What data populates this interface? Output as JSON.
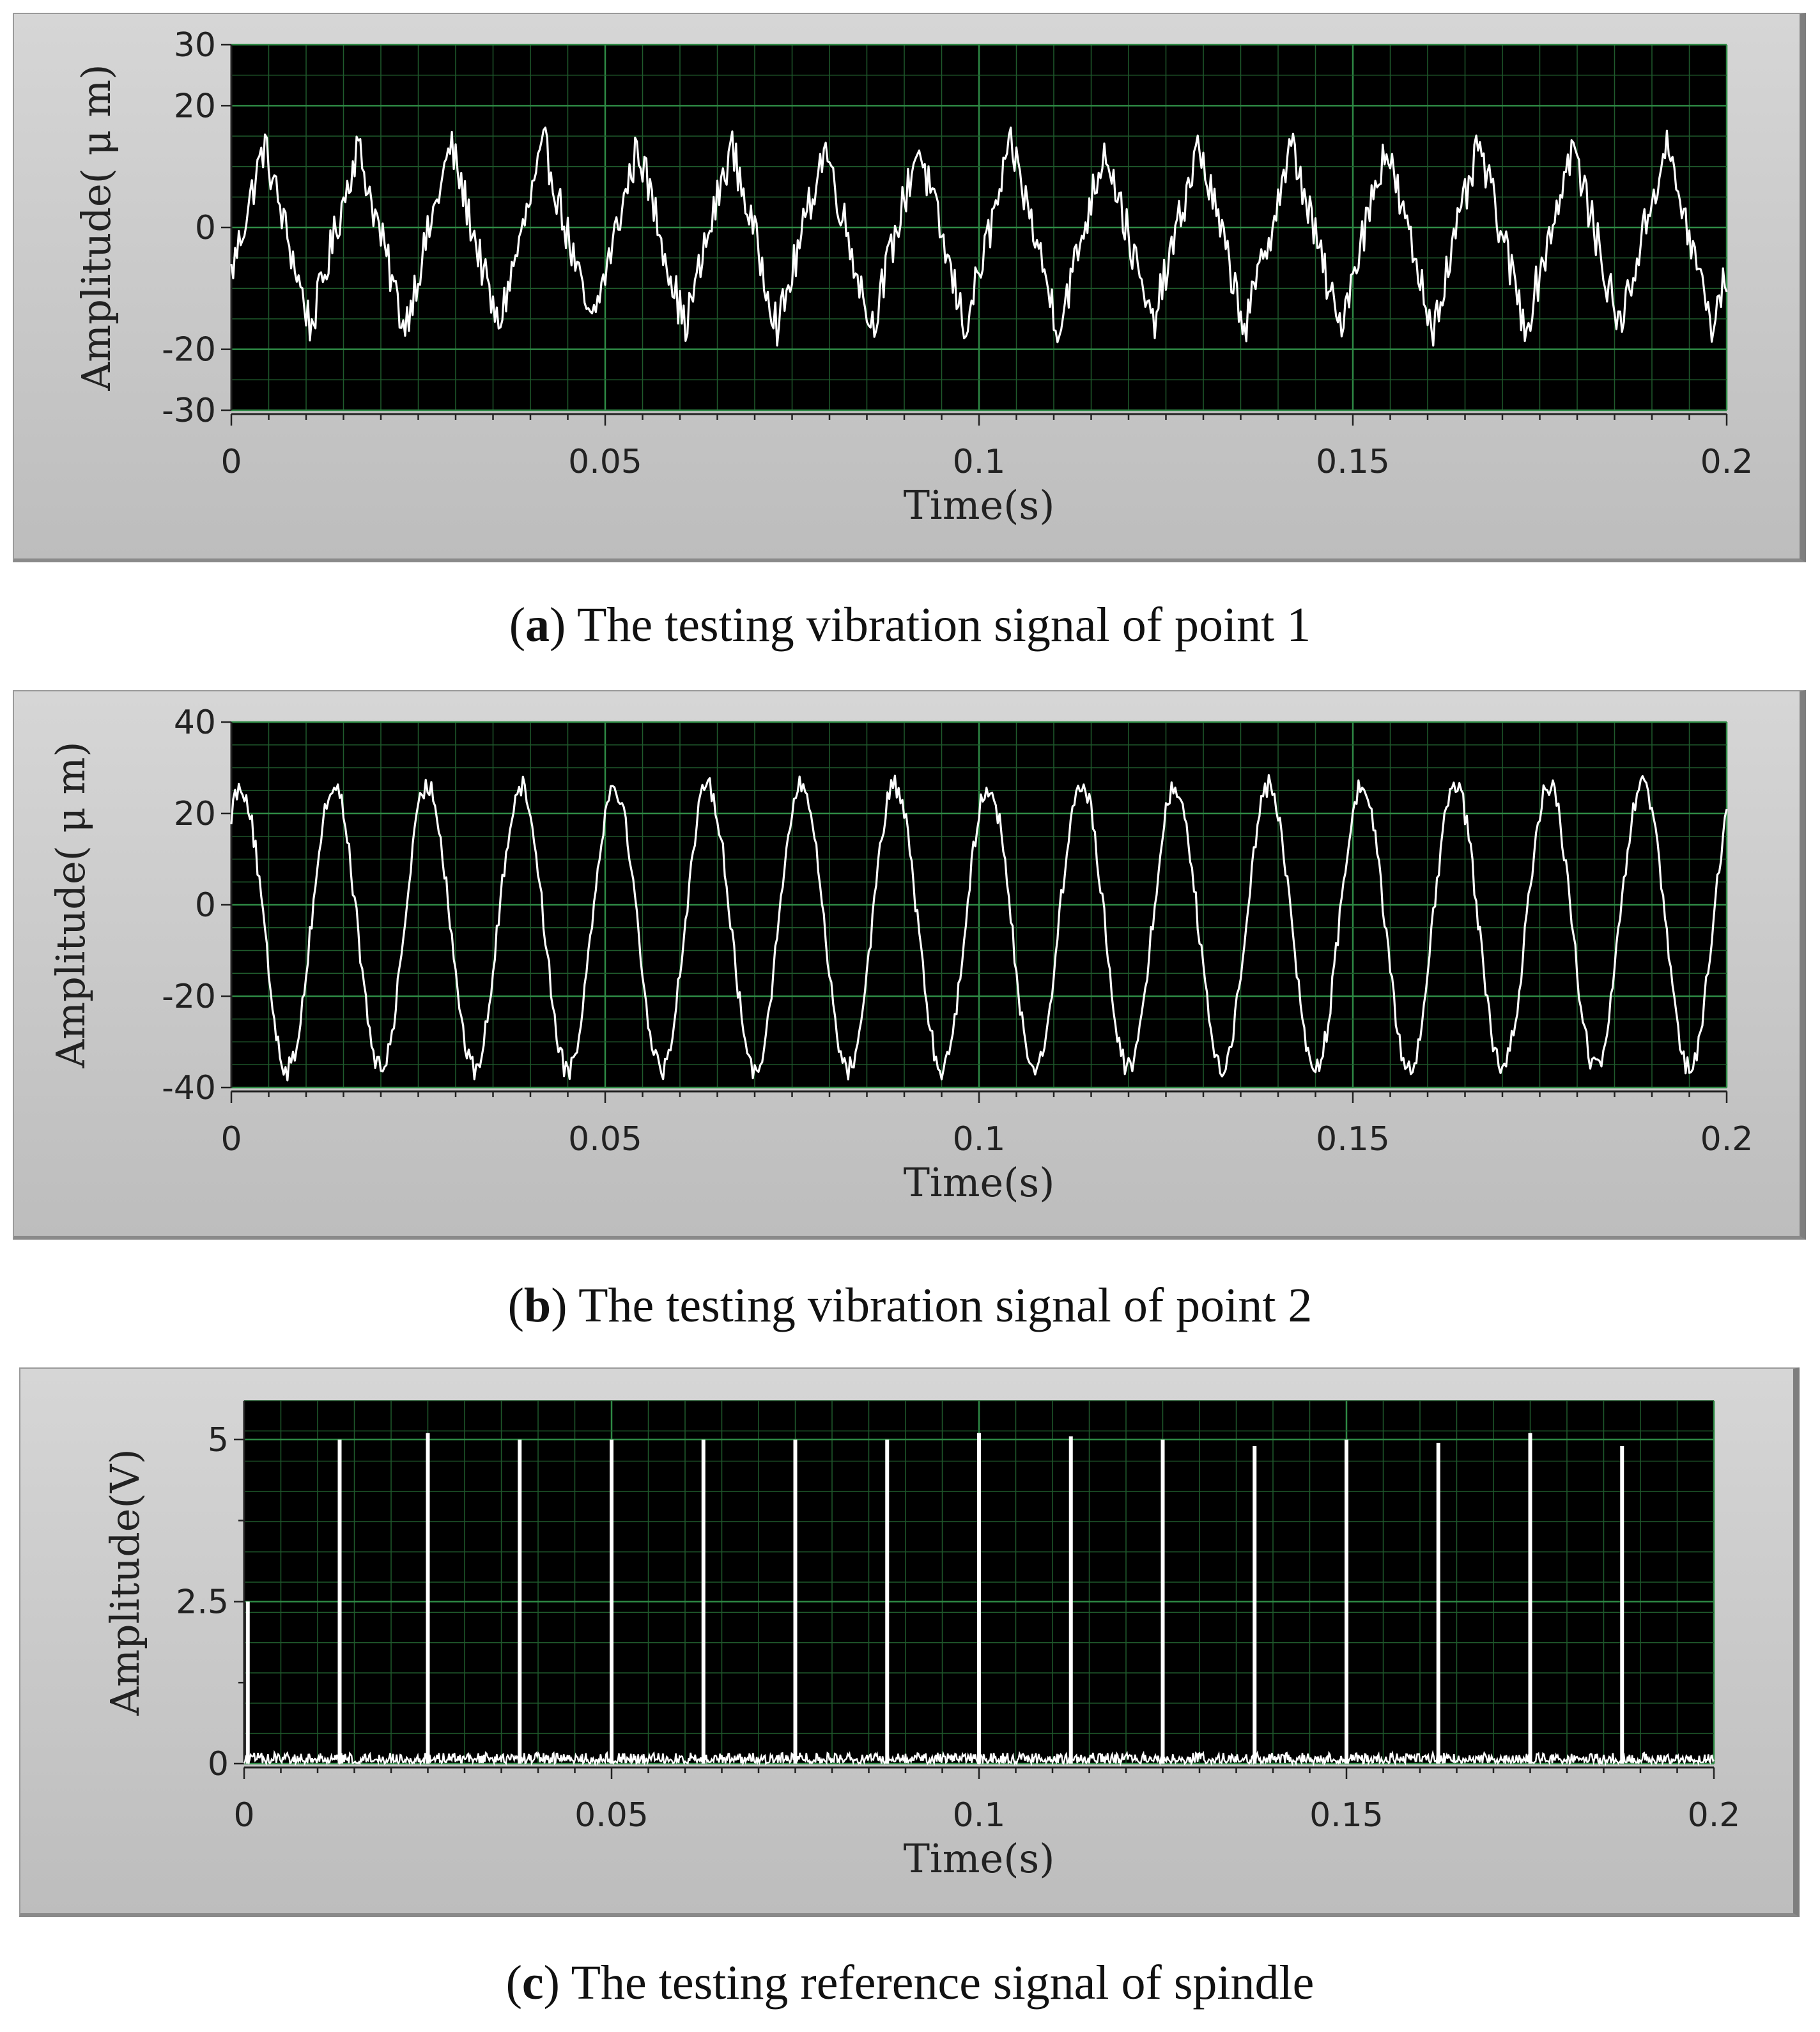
{
  "chart_data": [
    {
      "type": "line",
      "caption_letter": "a",
      "caption_text": "The testing vibration signal of point 1",
      "xlabel": "Time(s)",
      "ylabel": "Amplitude( μ m)",
      "xlim": [
        0,
        0.2
      ],
      "ylim": [
        -30,
        30
      ],
      "xticks": [
        "0",
        "0.05",
        "0.1",
        "0.15",
        "0.2"
      ],
      "xtick_values": [
        0,
        0.05,
        0.1,
        0.15,
        0.2
      ],
      "yticks": [
        "30",
        "20",
        "0",
        "-20",
        "-30"
      ],
      "ytick_values": [
        30,
        20,
        0,
        -20,
        -30
      ],
      "grid": true,
      "signal": {
        "shape": "triangular-periodic",
        "period_s": 0.0125,
        "mean": -1.5,
        "amplitude": 15,
        "noise": 3.5
      },
      "colors": {
        "plot_bg": "#000000",
        "grid": "#1f5a2c",
        "trace": "#ffffff"
      }
    },
    {
      "type": "line",
      "caption_letter": "b",
      "caption_text": "The testing vibration signal of point 2",
      "xlabel": "Time(s)",
      "ylabel": "Amplitude( μ m)",
      "xlim": [
        0,
        0.2
      ],
      "ylim": [
        -40,
        40
      ],
      "xticks": [
        "0",
        "0.05",
        "0.1",
        "0.15",
        "0.2"
      ],
      "xtick_values": [
        0,
        0.05,
        0.1,
        0.15,
        0.2
      ],
      "yticks": [
        "40",
        "20",
        "0",
        "-20",
        "-40"
      ],
      "ytick_values": [
        40,
        20,
        0,
        -20,
        -40
      ],
      "grid": true,
      "signal": {
        "shape": "sine-periodic",
        "period_s": 0.0125,
        "mean": -5,
        "amplitude": 31,
        "noise": 2.5
      },
      "colors": {
        "plot_bg": "#000000",
        "grid": "#1f5a2c",
        "trace": "#ffffff"
      }
    },
    {
      "type": "line",
      "caption_letter": "c",
      "caption_text": "The testing reference signal of spindle",
      "xlabel": "Time(s)",
      "ylabel": "Amplitude(V)",
      "xlim": [
        0,
        0.2
      ],
      "ylim": [
        0,
        5.6
      ],
      "xticks": [
        "0",
        "0.05",
        "0.1",
        "0.15",
        "0.2"
      ],
      "xtick_values": [
        0,
        0.05,
        0.1,
        0.15,
        0.2
      ],
      "yticks": [
        "5",
        "2.5",
        "0"
      ],
      "ytick_values": [
        5,
        2.5,
        0
      ],
      "minor_yticks": [
        3.75,
        1.25
      ],
      "grid": true,
      "pulses": {
        "times": [
          0.0005,
          0.013,
          0.025,
          0.0375,
          0.05,
          0.0625,
          0.075,
          0.0875,
          0.1,
          0.1125,
          0.125,
          0.1375,
          0.15,
          0.1625,
          0.175,
          0.1875
        ],
        "peaks": [
          2.5,
          5.0,
          5.1,
          5.0,
          5.0,
          5.0,
          5.0,
          5.0,
          5.1,
          5.05,
          5.0,
          4.9,
          5.0,
          4.95,
          5.1,
          4.9
        ],
        "baseline_noise": 0.12
      },
      "colors": {
        "plot_bg": "#000000",
        "grid": "#1f5a2c",
        "trace": "#ffffff"
      }
    }
  ]
}
